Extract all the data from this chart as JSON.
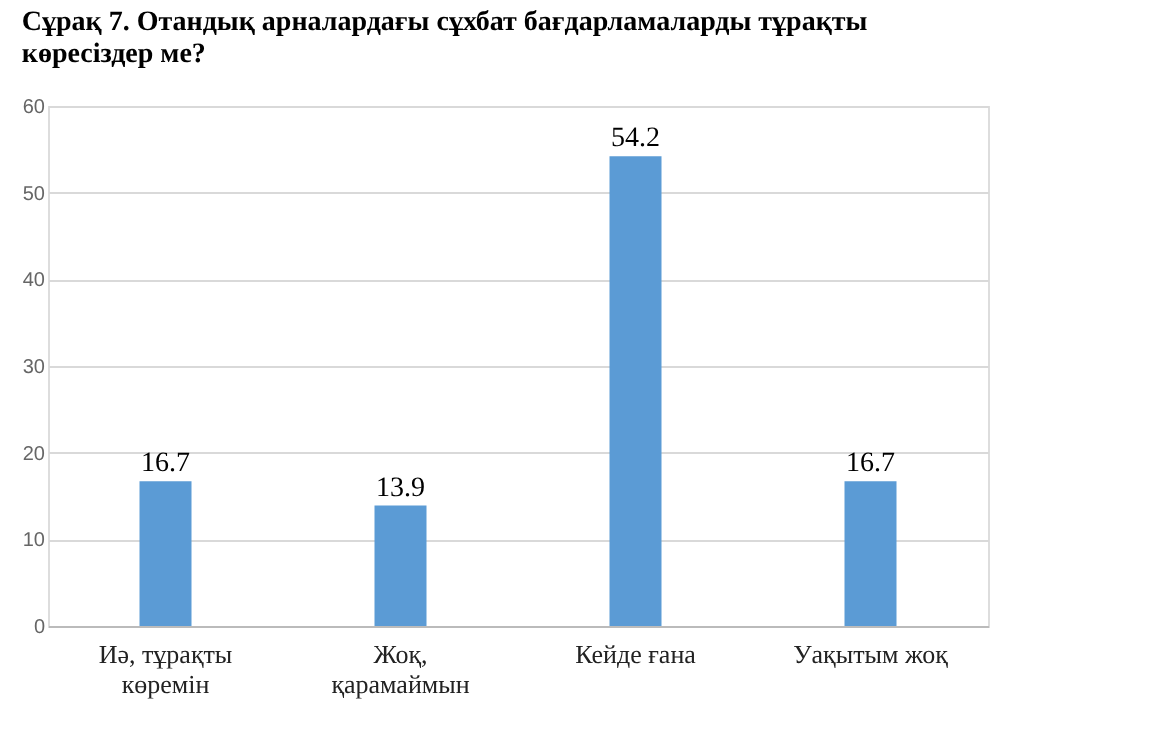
{
  "chart_data": {
    "type": "bar",
    "title": "Сұрақ 7. Отандық арналардағы сұхбат бағдарламаларды тұрақты\nкөресіздер ме?",
    "categories": [
      "Иә, тұрақты\nкөремін",
      "Жоқ,\nқарамаймын",
      "Кейде ғана",
      "Уақытым жоқ"
    ],
    "values": [
      16.7,
      13.9,
      54.2,
      16.7
    ],
    "color": "#5b9bd5",
    "ylim": [
      0,
      60
    ],
    "yticks": [
      0,
      10,
      20,
      30,
      40,
      50,
      60
    ],
    "grid": "y",
    "data_labels": true
  }
}
